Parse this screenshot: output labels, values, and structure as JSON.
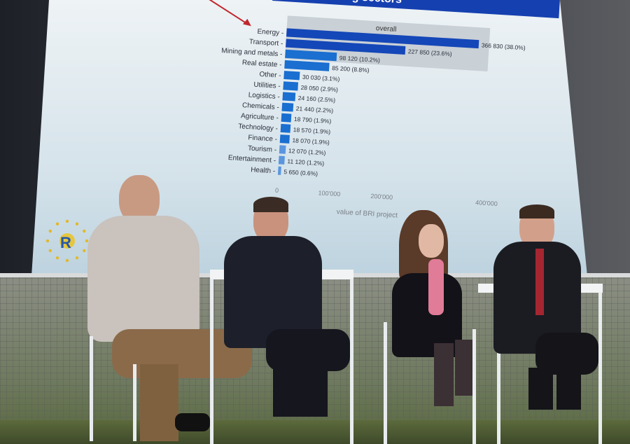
{
  "slide": {
    "title": "ojects among sectors",
    "band_label": "overall",
    "x_axis_label": "value of BRI project",
    "logo_text": "R"
  },
  "chart_data": {
    "type": "bar",
    "orientation": "horizontal",
    "title": "ojects among sectors",
    "xlabel": "value of BRI project",
    "ylabel": "",
    "xlim": [
      0,
      400000
    ],
    "x_ticks": [
      "0",
      "100'000",
      "200'000",
      "400'000"
    ],
    "categories": [
      "Energy",
      "Transport",
      "Mining and metals",
      "Real estate",
      "Other",
      "Utilities",
      "Logistics",
      "Chemicals",
      "Agriculture",
      "Technology",
      "Finance",
      "Tourism",
      "Entertainment",
      "Health"
    ],
    "values": [
      366830,
      227850,
      98120,
      85200,
      30030,
      28050,
      24160,
      21440,
      18790,
      18570,
      18070,
      12070,
      11120,
      5650
    ],
    "data_labels": [
      "366 830 (38.0%)",
      "227 850 (23.6%)",
      "98 120 (10.2%)",
      "85 200 (8.8%)",
      "30 030 (3.1%)",
      "28 050 (2.9%)",
      "24 160 (2.5%)",
      "21 440 (2.2%)",
      "18 790 (1.9%)",
      "18 570 (1.9%)",
      "18 070 (1.9%)",
      "12 070 (1.2%)",
      "11 120 (1.2%)",
      "5 650 (0.6%)"
    ],
    "colors": {
      "bar_dark": "#1447b8",
      "bar_mid": "#1a6fd0",
      "bar_light": "#5b96de",
      "band": "#c9d0d6",
      "title_bar": "#1540b0",
      "arrow": "#c0262d"
    }
  }
}
